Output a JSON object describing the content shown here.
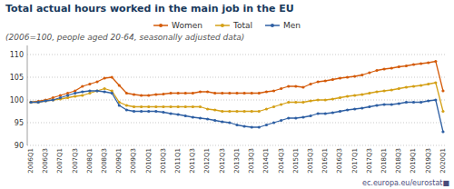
{
  "chart_data": {
    "type": "line",
    "title": "Total actual hours worked in the main job in the EU",
    "subtitle": "(2006=100, people aged 20-64, seasonally adjusted data)",
    "annotations": [
      "ec.europa.eu/eurostat■"
    ],
    "categories": [
      "2006Q1",
      null,
      "2006Q3",
      null,
      "2007Q1",
      null,
      "2007Q3",
      null,
      "2008Q1",
      null,
      "2008Q3",
      null,
      "2009Q1",
      null,
      "2009Q3",
      null,
      "2010Q1",
      null,
      "2010Q3",
      null,
      "2011Q1",
      null,
      "2011Q3",
      null,
      "2012Q1",
      null,
      "2012Q3",
      null,
      "2013Q1",
      null,
      "2013Q3",
      null,
      "2014Q1",
      null,
      "2014Q3",
      null,
      "2015Q1",
      null,
      "2015Q3",
      null,
      "2016Q1",
      null,
      "2016Q3",
      null,
      "2017Q1",
      null,
      "2017Q3",
      null,
      "2018Q1",
      null,
      "2018Q3",
      null,
      "2019Q1",
      null,
      "2019Q3",
      null,
      "2020Q1"
    ],
    "series": [
      {
        "name": "Women",
        "color": "#d45b0a",
        "values": [
          99.5,
          99.7,
          100.0,
          100.5,
          101.0,
          101.5,
          102.0,
          103.0,
          103.5,
          104.0,
          104.8,
          105.0,
          103.2,
          101.5,
          101.2,
          101.0,
          101.0,
          101.2,
          101.3,
          101.5,
          101.5,
          101.5,
          101.5,
          101.8,
          101.8,
          101.5,
          101.5,
          101.5,
          101.5,
          101.5,
          101.5,
          101.5,
          101.8,
          102.0,
          102.5,
          103.0,
          103.0,
          102.8,
          103.5,
          104.0,
          104.2,
          104.5,
          104.8,
          105.0,
          105.2,
          105.5,
          106.0,
          106.5,
          106.8,
          107.0,
          107.3,
          107.5,
          107.8,
          108.0,
          108.2,
          108.5,
          102.0
        ]
      },
      {
        "name": "Total",
        "color": "#d4a017",
        "values": [
          99.5,
          99.5,
          99.8,
          100.0,
          100.2,
          100.5,
          100.8,
          101.0,
          101.5,
          102.0,
          102.5,
          102.0,
          99.5,
          98.8,
          98.5,
          98.5,
          98.5,
          98.5,
          98.5,
          98.5,
          98.5,
          98.5,
          98.5,
          98.5,
          98.0,
          97.8,
          97.5,
          97.5,
          97.5,
          97.5,
          97.5,
          97.5,
          98.0,
          98.5,
          99.0,
          99.5,
          99.5,
          99.5,
          99.8,
          100.0,
          100.0,
          100.2,
          100.5,
          100.8,
          101.0,
          101.2,
          101.5,
          101.8,
          102.0,
          102.2,
          102.5,
          102.8,
          103.0,
          103.2,
          103.5,
          103.8,
          97.5
        ]
      },
      {
        "name": "Men",
        "color": "#2e5fa3",
        "values": [
          99.5,
          99.5,
          99.8,
          100.0,
          100.5,
          101.0,
          101.5,
          101.8,
          102.0,
          102.0,
          101.8,
          101.5,
          98.8,
          97.8,
          97.5,
          97.5,
          97.5,
          97.5,
          97.3,
          97.0,
          96.8,
          96.5,
          96.2,
          96.0,
          95.8,
          95.5,
          95.2,
          95.0,
          94.5,
          94.2,
          94.0,
          94.0,
          94.5,
          95.0,
          95.5,
          96.0,
          96.0,
          96.2,
          96.5,
          97.0,
          97.0,
          97.2,
          97.5,
          97.8,
          98.0,
          98.2,
          98.5,
          98.8,
          99.0,
          99.0,
          99.2,
          99.5,
          99.5,
          99.5,
          99.8,
          100.0,
          93.0
        ]
      }
    ],
    "ylim": [
      90,
      112
    ],
    "yticks": [
      90,
      95,
      100,
      105,
      110
    ],
    "grid": true,
    "legend": "top",
    "marker": "circle"
  }
}
